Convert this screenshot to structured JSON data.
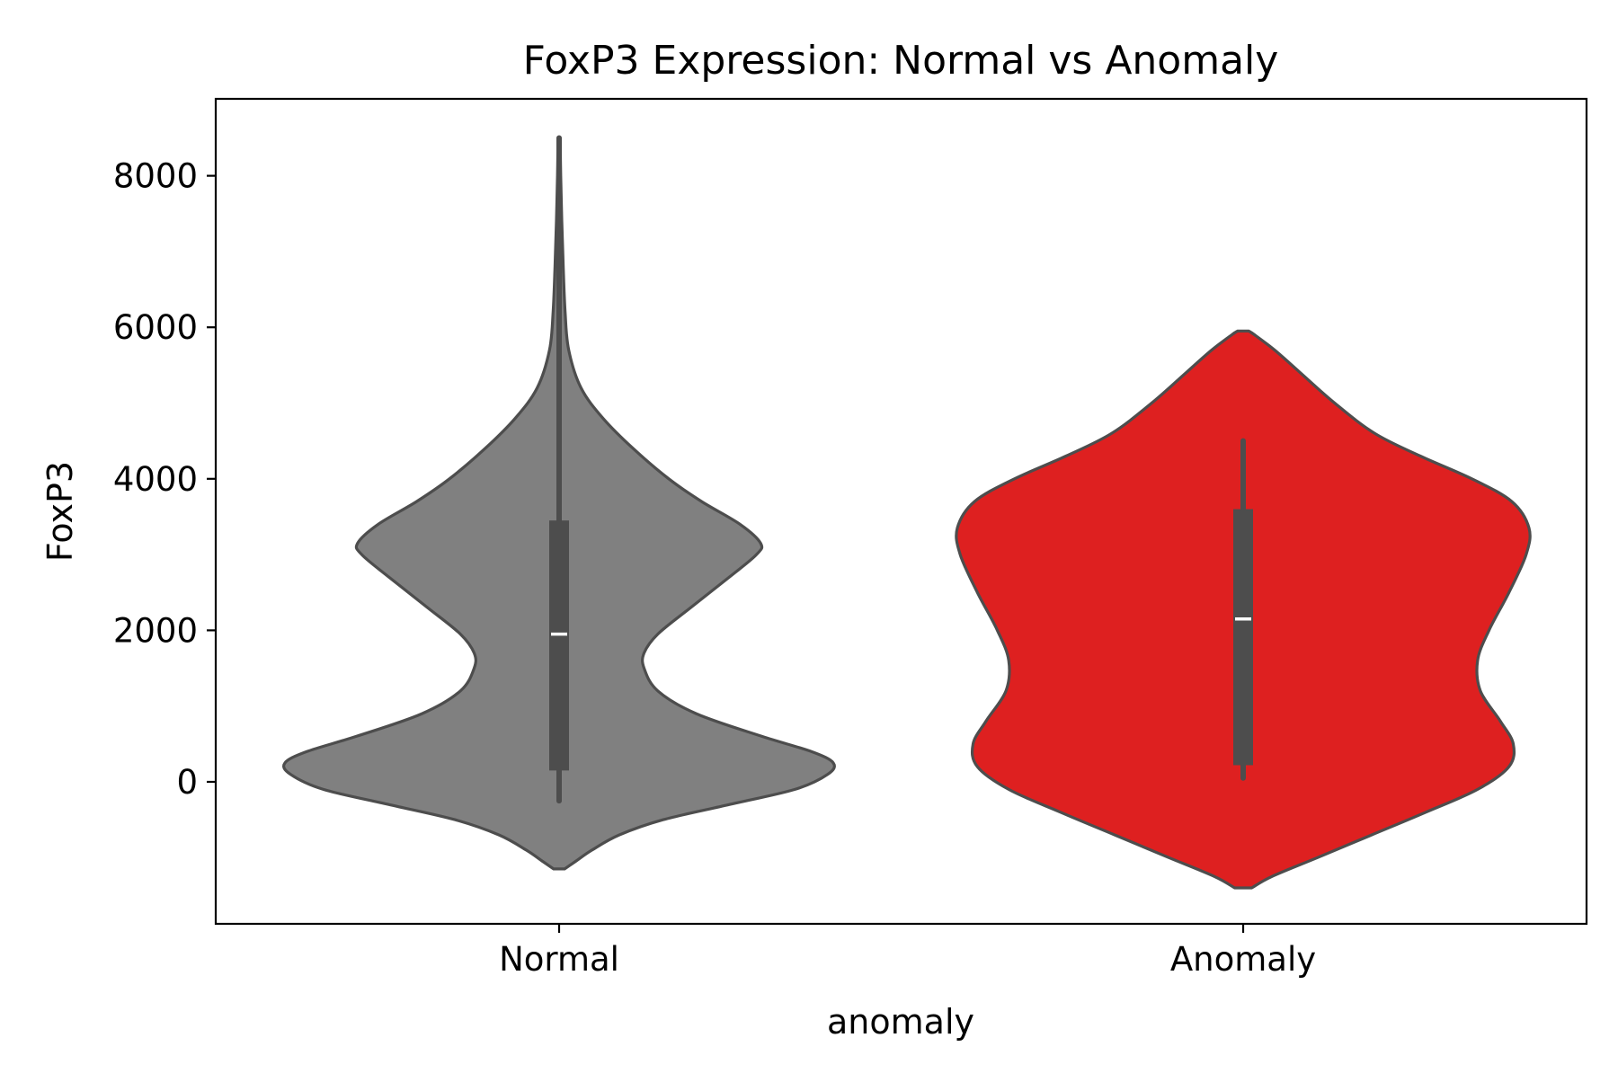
{
  "chart_data": {
    "type": "violin",
    "title": "FoxP3 Expression: Normal vs Anomaly",
    "xlabel": "anomaly",
    "ylabel": "FoxP3",
    "categories": [
      "Normal",
      "Anomaly"
    ],
    "ylim": [
      -1900,
      9000
    ],
    "yticks": [
      0,
      2000,
      4000,
      6000,
      8000
    ],
    "yticklabels": [
      "0",
      "2000",
      "4000",
      "6000",
      "8000"
    ],
    "grid": false,
    "legend": "none",
    "series": [
      {
        "category": "Normal",
        "color": "#808080",
        "edge_color": "#4d4d4d",
        "box": {
          "whisker_low": -250,
          "q1": 150,
          "median": 1950,
          "q3": 3450,
          "whisker_high": 8500
        },
        "density_profile": [
          [
            -1150,
            0.02
          ],
          [
            -1050,
            0.06
          ],
          [
            -900,
            0.12
          ],
          [
            -700,
            0.22
          ],
          [
            -500,
            0.38
          ],
          [
            -300,
            0.62
          ],
          [
            -100,
            0.86
          ],
          [
            100,
            0.98
          ],
          [
            250,
            1.0
          ],
          [
            400,
            0.92
          ],
          [
            600,
            0.74
          ],
          [
            900,
            0.5
          ],
          [
            1200,
            0.36
          ],
          [
            1500,
            0.31
          ],
          [
            1700,
            0.31
          ],
          [
            1950,
            0.36
          ],
          [
            2300,
            0.48
          ],
          [
            2700,
            0.62
          ],
          [
            3000,
            0.72
          ],
          [
            3150,
            0.735
          ],
          [
            3400,
            0.66
          ],
          [
            3700,
            0.52
          ],
          [
            4000,
            0.4
          ],
          [
            4400,
            0.27
          ],
          [
            4800,
            0.16
          ],
          [
            5200,
            0.08
          ],
          [
            5700,
            0.035
          ],
          [
            6200,
            0.022
          ],
          [
            6800,
            0.015
          ],
          [
            7400,
            0.01
          ],
          [
            8000,
            0.006
          ],
          [
            8500,
            0.004
          ]
        ]
      },
      {
        "category": "Anomaly",
        "color": "#de2020",
        "edge_color": "#4d4d4d",
        "box": {
          "whisker_low": 50,
          "q1": 220,
          "median": 2150,
          "q3": 3600,
          "whisker_high": 4500
        },
        "density_profile": [
          [
            -1400,
            0.03
          ],
          [
            -1250,
            0.1
          ],
          [
            -1000,
            0.26
          ],
          [
            -700,
            0.45
          ],
          [
            -400,
            0.64
          ],
          [
            -100,
            0.82
          ],
          [
            200,
            0.93
          ],
          [
            500,
            0.945
          ],
          [
            800,
            0.9
          ],
          [
            1200,
            0.83
          ],
          [
            1600,
            0.82
          ],
          [
            2000,
            0.86
          ],
          [
            2500,
            0.93
          ],
          [
            3000,
            0.99
          ],
          [
            3350,
            1.0
          ],
          [
            3700,
            0.94
          ],
          [
            4000,
            0.8
          ],
          [
            4300,
            0.62
          ],
          [
            4600,
            0.46
          ],
          [
            5000,
            0.32
          ],
          [
            5400,
            0.2
          ],
          [
            5700,
            0.11
          ],
          [
            5900,
            0.04
          ],
          [
            5950,
            0.02
          ]
        ]
      }
    ]
  }
}
